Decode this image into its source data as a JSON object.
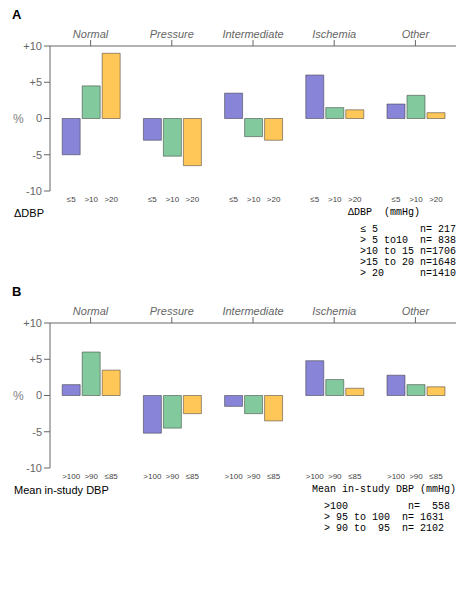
{
  "chart_data": [
    {
      "type": "bar",
      "title": "A",
      "ylabel": "%",
      "xlabel": "ΔDBP",
      "categories": [
        "Normal",
        "Pressure",
        "Intermediate",
        "Ischemia",
        "Other"
      ],
      "series": [
        {
          "name": "≤5",
          "color": "#8884d8",
          "values": [
            -5.0,
            -3.0,
            3.5,
            6.0,
            2.0
          ]
        },
        {
          "name": ">10",
          "color": "#82ca9d",
          "values": [
            4.5,
            -5.2,
            -2.5,
            1.5,
            3.2
          ]
        },
        {
          "name": ">20",
          "color": "#ffc658",
          "values": [
            9.0,
            -6.5,
            -3.0,
            1.2,
            0.8
          ]
        }
      ],
      "ylim": [
        -10,
        10
      ],
      "yticks": [
        -10,
        -5,
        0,
        {
          "value": 5,
          "label": "+5"
        },
        {
          "value": 10,
          "label": "+10"
        }
      ],
      "grid": false,
      "annotations": [
        "ΔDBP  (mmHg)",
        "  ≤ 5       n= 217",
        "  > 5 to10  n= 838",
        "  >10 to 15 n=1706",
        "  >15 to 20 n=1648",
        "  > 20      n=1410"
      ]
    },
    {
      "type": "bar",
      "title": "B",
      "ylabel": "%",
      "xlabel": "Mean in-study DBP",
      "categories": [
        "Normal",
        "Pressure",
        "Intermediate",
        "Ischemia",
        "Other"
      ],
      "series": [
        {
          "name": ">100",
          "color": "#8884d8",
          "values": [
            1.5,
            -5.2,
            -1.5,
            4.8,
            2.8
          ]
        },
        {
          "name": ">90",
          "color": "#82ca9d",
          "values": [
            6.0,
            -4.5,
            -2.5,
            2.2,
            1.5
          ]
        },
        {
          "name": "≤85",
          "color": "#ffc658",
          "values": [
            3.5,
            -2.5,
            -3.5,
            1.0,
            1.2
          ]
        }
      ],
      "ylim": [
        -10,
        10
      ],
      "yticks": [
        -10,
        -5,
        0,
        {
          "value": 5,
          "label": "+5"
        },
        {
          "value": 10,
          "label": "+10"
        }
      ],
      "grid": false,
      "annotations": [
        "Mean in-study DBP (mmHg)",
        "  >100          n=  558",
        "  > 95 to 100  n= 1631",
        "  > 90 to  95  n= 2102"
      ]
    }
  ]
}
